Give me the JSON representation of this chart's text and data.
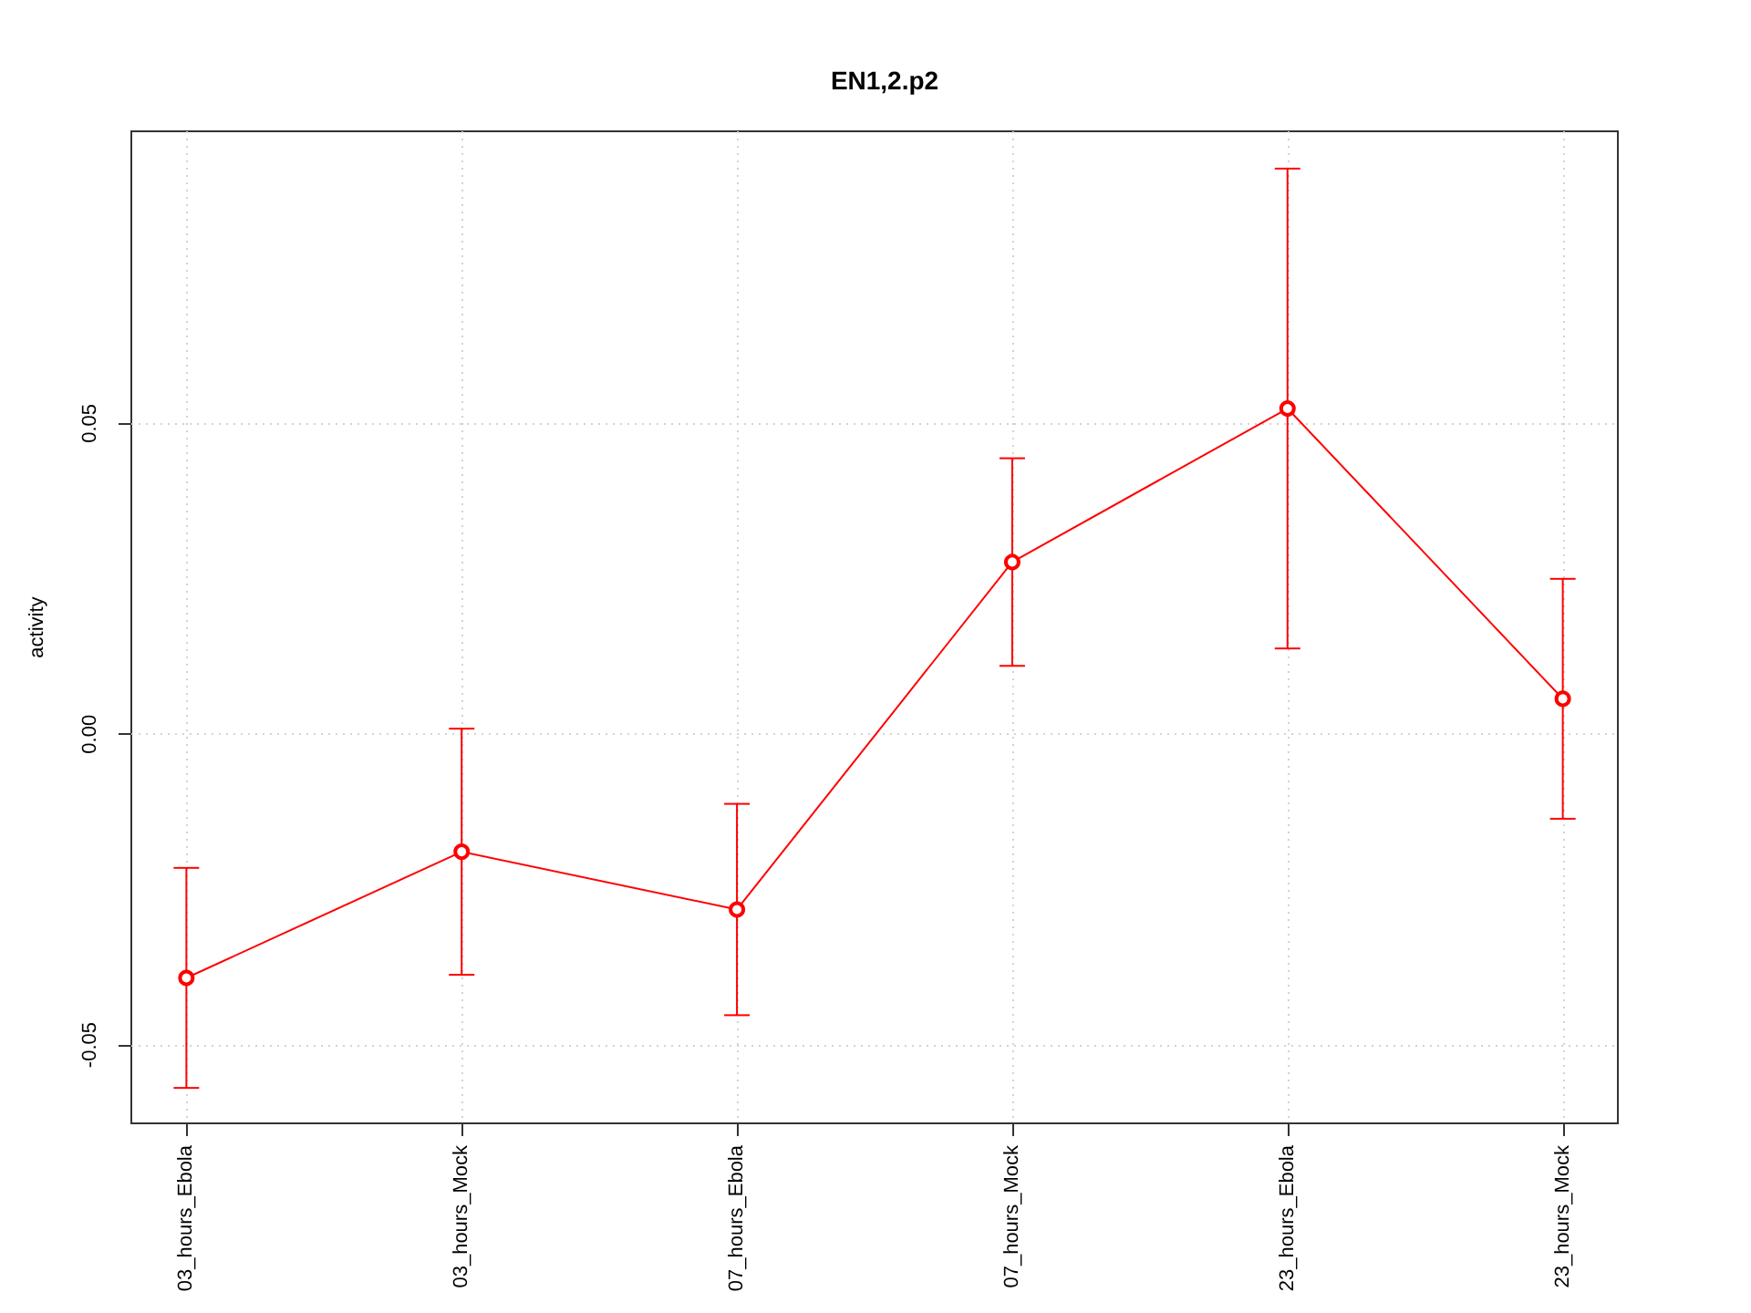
{
  "chart_data": {
    "type": "line",
    "title": "EN1,2.p2",
    "ylabel": "activity",
    "categories": [
      "03_hours_Ebola",
      "03_hours_Mock",
      "07_hours_Ebola",
      "07_hours_Mock",
      "23_hours_Ebola",
      "23_hours_Mock"
    ],
    "series": [
      {
        "color": "#ff0000",
        "values": [
          -0.0392,
          -0.0189,
          -0.0282,
          0.0277,
          0.0524,
          0.0057
        ],
        "errors": [
          0.0177,
          0.0198,
          0.017,
          0.0167,
          0.0386,
          0.0193
        ]
      }
    ],
    "ylim": [
      -0.0626,
      0.097
    ],
    "yticks": [
      -0.05,
      {
        "value": 0,
        "label": "0.00"
      },
      0.05
    ],
    "grid": true,
    "marker": "circle",
    "line_style": "solid"
  }
}
